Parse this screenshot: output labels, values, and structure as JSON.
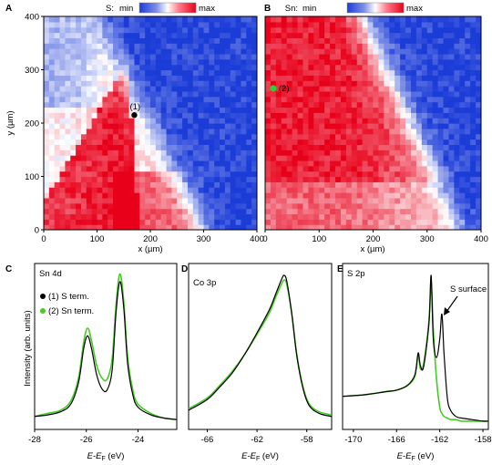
{
  "chart_data": [
    {
      "panel": "A",
      "type": "heatmap",
      "colorbar": {
        "label": "S:",
        "min_label": "min",
        "max_label": "max"
      },
      "xlabel": "x (µm)",
      "ylabel": "y (µm)",
      "xlim": [
        0,
        400
      ],
      "ylim": [
        0,
        400
      ],
      "xticks": [
        "0",
        "100",
        "200",
        "300",
        "400"
      ],
      "yticks": [
        "0",
        "100",
        "200",
        "300",
        "400"
      ],
      "marker": {
        "label": "(1)",
        "x": 170,
        "y": 215,
        "color": "#000000"
      }
    },
    {
      "panel": "B",
      "type": "heatmap",
      "colorbar": {
        "label": "Sn:",
        "min_label": "min",
        "max_label": "max"
      },
      "xlabel": "x (µm)",
      "xlim": [
        0,
        400
      ],
      "ylim": [
        0,
        400
      ],
      "xticks": [
        "0",
        "100",
        "200",
        "300",
        "400"
      ],
      "marker": {
        "label": "(2)",
        "x": 15,
        "y": 265,
        "color": "#33cc33"
      }
    },
    {
      "panel": "C",
      "type": "line",
      "title": "Sn 4d",
      "xlabel": "E-EF (eV)",
      "ylabel": "Intensity (arb. units)",
      "xlim": [
        -28,
        -22.5
      ],
      "xticks": [
        "-28",
        "-26",
        "-24"
      ],
      "legend": [
        "(1) S term.",
        "(2) Sn term."
      ],
      "series": [
        {
          "name": "(1) S term.",
          "color": "#000000",
          "x": [
            -28,
            -27.5,
            -27,
            -26.6,
            -26.3,
            -26.1,
            -25.95,
            -25.8,
            -25.6,
            -25.4,
            -25.2,
            -25.0,
            -24.85,
            -24.7,
            -24.55,
            -24.4,
            -24.2,
            -24.0,
            -23.5,
            -23.0,
            -22.5
          ],
          "y": [
            0.06,
            0.07,
            0.09,
            0.14,
            0.28,
            0.5,
            0.58,
            0.5,
            0.33,
            0.24,
            0.23,
            0.36,
            0.73,
            0.93,
            0.76,
            0.4,
            0.2,
            0.12,
            0.07,
            0.05,
            0.04
          ]
        },
        {
          "name": "(2) Sn term.",
          "color": "#44cc22",
          "x": [
            -28,
            -27.5,
            -27,
            -26.6,
            -26.3,
            -26.1,
            -25.95,
            -25.8,
            -25.6,
            -25.4,
            -25.2,
            -25.0,
            -24.85,
            -24.7,
            -24.55,
            -24.4,
            -24.2,
            -24.0,
            -23.5,
            -23.0,
            -22.5
          ],
          "y": [
            0.06,
            0.08,
            0.1,
            0.16,
            0.31,
            0.54,
            0.63,
            0.55,
            0.39,
            0.31,
            0.3,
            0.43,
            0.78,
            0.98,
            0.8,
            0.44,
            0.23,
            0.14,
            0.08,
            0.05,
            0.04
          ]
        }
      ]
    },
    {
      "panel": "D",
      "type": "line",
      "title": "Co 3p",
      "xlabel": "E-EF (eV)",
      "xlim": [
        -67.5,
        -56
      ],
      "xticks": [
        "-66",
        "-62",
        "-58"
      ],
      "series": [
        {
          "name": "(1) S term.",
          "color": "#000000",
          "x": [
            -67.5,
            -66,
            -65,
            -64,
            -63,
            -62,
            -61,
            -60.5,
            -60.0,
            -59.8,
            -59.6,
            -59.2,
            -58.8,
            -58.3,
            -57.8,
            -57,
            -56
          ],
          "y": [
            0.1,
            0.17,
            0.25,
            0.34,
            0.46,
            0.6,
            0.75,
            0.85,
            0.95,
            0.97,
            0.93,
            0.72,
            0.45,
            0.24,
            0.13,
            0.08,
            0.06
          ]
        },
        {
          "name": "(2) Sn term.",
          "color": "#44cc22",
          "x": [
            -67.5,
            -66,
            -65,
            -64,
            -63,
            -62,
            -61,
            -60.5,
            -60.0,
            -59.8,
            -59.6,
            -59.2,
            -58.8,
            -58.3,
            -57.8,
            -57,
            -56
          ],
          "y": [
            0.11,
            0.18,
            0.26,
            0.35,
            0.46,
            0.59,
            0.73,
            0.83,
            0.92,
            0.94,
            0.91,
            0.72,
            0.46,
            0.25,
            0.14,
            0.09,
            0.07
          ]
        }
      ]
    },
    {
      "panel": "E",
      "type": "line",
      "title": "S 2p",
      "annotation": "S surface",
      "xlabel": "E-EF (eV)",
      "xlim": [
        -171,
        -157.5
      ],
      "xticks": [
        "-170",
        "-166",
        "-162",
        "-158"
      ],
      "series": [
        {
          "name": "(1) S term.",
          "color": "#000000",
          "x": [
            -171,
            -169,
            -167,
            -166,
            -165,
            -164.3,
            -164.0,
            -163.8,
            -163.5,
            -163.0,
            -162.8,
            -162.6,
            -162.3,
            -162.0,
            -161.8,
            -161.6,
            -161.3,
            -161.0,
            -160.5,
            -160,
            -159,
            -158,
            -157.5
          ],
          "y": [
            0.19,
            0.2,
            0.22,
            0.23,
            0.26,
            0.33,
            0.47,
            0.39,
            0.38,
            0.66,
            0.97,
            0.56,
            0.44,
            0.56,
            0.72,
            0.46,
            0.18,
            0.1,
            0.06,
            0.05,
            0.04,
            0.03,
            0.03
          ]
        },
        {
          "name": "(2) Sn term.",
          "color": "#44cc22",
          "x": [
            -171,
            -169,
            -167,
            -166,
            -165,
            -164.3,
            -164.0,
            -163.8,
            -163.5,
            -163.0,
            -162.8,
            -162.6,
            -162.3,
            -162.0,
            -161.8,
            -161.6,
            -161.3,
            -161.0,
            -160.5,
            -160,
            -159,
            -158,
            -157.5
          ],
          "y": [
            0.19,
            0.2,
            0.22,
            0.23,
            0.26,
            0.32,
            0.46,
            0.37,
            0.4,
            0.68,
            0.93,
            0.62,
            0.3,
            0.12,
            0.08,
            0.06,
            0.05,
            0.04,
            0.04,
            0.03,
            0.03,
            0.03,
            0.03
          ]
        }
      ]
    }
  ]
}
